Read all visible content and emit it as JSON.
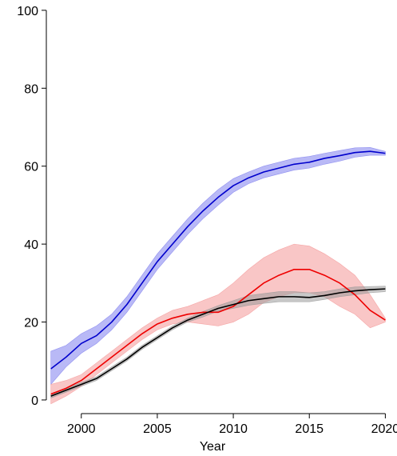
{
  "chart_data": {
    "type": "line",
    "title": "",
    "xlabel": "Year",
    "ylabel": "",
    "xlim": [
      1997.7,
      2020.4
    ],
    "ylim": [
      -3.5,
      101
    ],
    "x_ticks": [
      2000,
      2005,
      2010,
      2015,
      2020
    ],
    "y_ticks": [
      0,
      20,
      40,
      60,
      80,
      100
    ],
    "grid": false,
    "legend": "none",
    "series": [
      {
        "color": "#0000cc",
        "band_color": "#8080ee",
        "points": [
          {
            "x": 1998,
            "y": 8,
            "lo": 4,
            "hi": 12.5
          },
          {
            "x": 1999,
            "y": 11,
            "lo": 8.5,
            "hi": 14
          },
          {
            "x": 2000,
            "y": 14.5,
            "lo": 12,
            "hi": 17
          },
          {
            "x": 2001,
            "y": 16.5,
            "lo": 14.5,
            "hi": 19
          },
          {
            "x": 2002,
            "y": 20,
            "lo": 18,
            "hi": 22
          },
          {
            "x": 2003,
            "y": 24.5,
            "lo": 22.5,
            "hi": 26.5
          },
          {
            "x": 2004,
            "y": 30,
            "lo": 28,
            "hi": 32
          },
          {
            "x": 2005,
            "y": 35.5,
            "lo": 33.5,
            "hi": 37.5
          },
          {
            "x": 2006,
            "y": 40,
            "lo": 38,
            "hi": 42
          },
          {
            "x": 2007,
            "y": 44.5,
            "lo": 42.5,
            "hi": 46.5
          },
          {
            "x": 2008,
            "y": 48.5,
            "lo": 46.5,
            "hi": 50.5
          },
          {
            "x": 2009,
            "y": 52,
            "lo": 50,
            "hi": 54
          },
          {
            "x": 2010,
            "y": 55,
            "lo": 53.3,
            "hi": 56.8
          },
          {
            "x": 2011,
            "y": 57,
            "lo": 55.5,
            "hi": 58.5
          },
          {
            "x": 2012,
            "y": 58.5,
            "lo": 57,
            "hi": 60
          },
          {
            "x": 2013,
            "y": 59.5,
            "lo": 58,
            "hi": 61
          },
          {
            "x": 2014,
            "y": 60.5,
            "lo": 59,
            "hi": 62
          },
          {
            "x": 2015,
            "y": 61,
            "lo": 59.5,
            "hi": 62.5
          },
          {
            "x": 2016,
            "y": 62,
            "lo": 60.5,
            "hi": 63.3
          },
          {
            "x": 2017,
            "y": 62.7,
            "lo": 61.3,
            "hi": 64
          },
          {
            "x": 2018,
            "y": 63.5,
            "lo": 62.3,
            "hi": 64.7
          },
          {
            "x": 2019,
            "y": 63.8,
            "lo": 62.8,
            "hi": 64.8
          },
          {
            "x": 2020,
            "y": 63.3,
            "lo": 62.8,
            "hi": 63.8
          }
        ]
      },
      {
        "color": "#ee0000",
        "band_color": "#f49898",
        "points": [
          {
            "x": 1998,
            "y": 1.5,
            "lo": -1,
            "hi": 4
          },
          {
            "x": 1999,
            "y": 3,
            "lo": 1,
            "hi": 5
          },
          {
            "x": 2000,
            "y": 5,
            "lo": 3.5,
            "hi": 6.5
          },
          {
            "x": 2001,
            "y": 8,
            "lo": 6.5,
            "hi": 9.5
          },
          {
            "x": 2002,
            "y": 11,
            "lo": 9.5,
            "hi": 12.5
          },
          {
            "x": 2003,
            "y": 14,
            "lo": 12.5,
            "hi": 15.5
          },
          {
            "x": 2004,
            "y": 17,
            "lo": 15.5,
            "hi": 18.5
          },
          {
            "x": 2005,
            "y": 19.5,
            "lo": 18,
            "hi": 21
          },
          {
            "x": 2006,
            "y": 21,
            "lo": 19.5,
            "hi": 23
          },
          {
            "x": 2007,
            "y": 22,
            "lo": 20,
            "hi": 24
          },
          {
            "x": 2008,
            "y": 22.5,
            "lo": 19.5,
            "hi": 25.5
          },
          {
            "x": 2009,
            "y": 22.5,
            "lo": 19,
            "hi": 27
          },
          {
            "x": 2010,
            "y": 24,
            "lo": 20,
            "hi": 30
          },
          {
            "x": 2011,
            "y": 27,
            "lo": 22,
            "hi": 33.5
          },
          {
            "x": 2012,
            "y": 30,
            "lo": 25,
            "hi": 36.5
          },
          {
            "x": 2013,
            "y": 32,
            "lo": 26.5,
            "hi": 38.5
          },
          {
            "x": 2014,
            "y": 33.5,
            "lo": 27.5,
            "hi": 40
          },
          {
            "x": 2015,
            "y": 33.5,
            "lo": 27.5,
            "hi": 39.5
          },
          {
            "x": 2016,
            "y": 32,
            "lo": 26.5,
            "hi": 37.5
          },
          {
            "x": 2017,
            "y": 30,
            "lo": 24,
            "hi": 35
          },
          {
            "x": 2018,
            "y": 27,
            "lo": 22,
            "hi": 32
          },
          {
            "x": 2019,
            "y": 23,
            "lo": 18.5,
            "hi": 27
          },
          {
            "x": 2020,
            "y": 20.5,
            "lo": 20,
            "hi": 21
          }
        ]
      },
      {
        "color": "#000000",
        "band_color": "#9a9a9a",
        "points": [
          {
            "x": 1998,
            "y": 1,
            "lo": 0.5,
            "hi": 1.5
          },
          {
            "x": 1999,
            "y": 2.5,
            "lo": 2,
            "hi": 3
          },
          {
            "x": 2000,
            "y": 4,
            "lo": 3.5,
            "hi": 4.5
          },
          {
            "x": 2001,
            "y": 5.5,
            "lo": 5,
            "hi": 6
          },
          {
            "x": 2002,
            "y": 8,
            "lo": 7.5,
            "hi": 8.5
          },
          {
            "x": 2003,
            "y": 10.5,
            "lo": 10,
            "hi": 11
          },
          {
            "x": 2004,
            "y": 13.5,
            "lo": 13,
            "hi": 14
          },
          {
            "x": 2005,
            "y": 16,
            "lo": 15.5,
            "hi": 16.5
          },
          {
            "x": 2006,
            "y": 18.5,
            "lo": 18,
            "hi": 19
          },
          {
            "x": 2007,
            "y": 20.5,
            "lo": 20,
            "hi": 21
          },
          {
            "x": 2008,
            "y": 22,
            "lo": 21.3,
            "hi": 22.7
          },
          {
            "x": 2009,
            "y": 23.5,
            "lo": 22.8,
            "hi": 24.2
          },
          {
            "x": 2010,
            "y": 24.5,
            "lo": 23.5,
            "hi": 25.5
          },
          {
            "x": 2011,
            "y": 25.5,
            "lo": 24.3,
            "hi": 26.8
          },
          {
            "x": 2012,
            "y": 26,
            "lo": 24.8,
            "hi": 27.3
          },
          {
            "x": 2013,
            "y": 26.5,
            "lo": 25.2,
            "hi": 27.8
          },
          {
            "x": 2014,
            "y": 26.5,
            "lo": 25.2,
            "hi": 27.8
          },
          {
            "x": 2015,
            "y": 26.3,
            "lo": 25.2,
            "hi": 27.5
          },
          {
            "x": 2016,
            "y": 26.8,
            "lo": 25.8,
            "hi": 27.8
          },
          {
            "x": 2017,
            "y": 27.5,
            "lo": 26.5,
            "hi": 28.5
          },
          {
            "x": 2018,
            "y": 28,
            "lo": 27,
            "hi": 29
          },
          {
            "x": 2019,
            "y": 28.3,
            "lo": 27.5,
            "hi": 29.1
          },
          {
            "x": 2020,
            "y": 28.5,
            "lo": 27.8,
            "hi": 29.2
          }
        ]
      }
    ]
  }
}
